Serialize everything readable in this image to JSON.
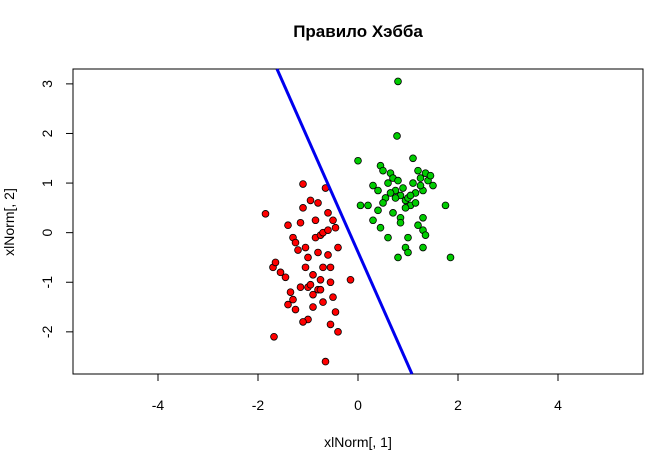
{
  "chart_data": {
    "type": "scatter",
    "title": "Правило Хэбба",
    "xlabel": "xlNorm[, 1]",
    "ylabel": "xlNorm[, 2]",
    "xlim": [
      -5.7,
      5.7
    ],
    "ylim": [
      -2.85,
      3.3
    ],
    "x_ticks": [
      -4,
      -2,
      0,
      2,
      4
    ],
    "x_tick_labels": [
      "-4",
      "-2",
      "0",
      "2",
      "4"
    ],
    "y_ticks": [
      -2,
      -1,
      0,
      1,
      2,
      3
    ],
    "y_tick_labels": [
      "-2",
      "-1",
      "0",
      "1",
      "2",
      "3"
    ],
    "grid": false,
    "series": [
      {
        "color": "#ff0000",
        "points": [
          [
            -1.85,
            0.38
          ],
          [
            -1.7,
            -0.7
          ],
          [
            -1.65,
            -0.6
          ],
          [
            -1.55,
            -0.8
          ],
          [
            -1.68,
            -2.1
          ],
          [
            -1.45,
            -0.9
          ],
          [
            -1.4,
            -1.45
          ],
          [
            -1.3,
            -1.35
          ],
          [
            -1.25,
            -1.55
          ],
          [
            -1.4,
            0.15
          ],
          [
            -1.3,
            -0.1
          ],
          [
            -1.2,
            -0.35
          ],
          [
            -1.15,
            0.2
          ],
          [
            -1.1,
            0.5
          ],
          [
            -1.1,
            0.98
          ],
          [
            -1.05,
            -0.3
          ],
          [
            -1.05,
            -0.7
          ],
          [
            -1.0,
            -1.1
          ],
          [
            -1.0,
            -1.75
          ],
          [
            -0.95,
            0.65
          ],
          [
            -0.9,
            -0.85
          ],
          [
            -0.9,
            -1.25
          ],
          [
            -0.85,
            0.25
          ],
          [
            -0.85,
            -0.1
          ],
          [
            -0.8,
            -1.15
          ],
          [
            -0.8,
            -0.4
          ],
          [
            -0.75,
            -0.05
          ],
          [
            -0.75,
            -0.95
          ],
          [
            -0.7,
            0.0
          ],
          [
            -0.7,
            -1.4
          ],
          [
            -0.65,
            0.9
          ],
          [
            -0.6,
            0.4
          ],
          [
            -0.6,
            -0.45
          ],
          [
            -0.55,
            -1.0
          ],
          [
            -0.55,
            -1.85
          ],
          [
            -0.5,
            -1.3
          ],
          [
            -0.45,
            0.1
          ],
          [
            -0.45,
            -1.6
          ],
          [
            -0.4,
            -0.3
          ],
          [
            -0.4,
            -2.0
          ],
          [
            -0.65,
            -2.6
          ],
          [
            -0.95,
            -1.05
          ],
          [
            -1.15,
            -1.1
          ],
          [
            -1.25,
            -0.2
          ],
          [
            -0.8,
            0.6
          ],
          [
            -0.7,
            -0.7
          ],
          [
            -1.0,
            -0.5
          ],
          [
            -0.6,
            0.05
          ],
          [
            -1.35,
            -1.2
          ],
          [
            -0.9,
            -1.5
          ],
          [
            -0.15,
            -0.95
          ],
          [
            -0.75,
            -1.15
          ],
          [
            -0.55,
            -0.7
          ],
          [
            -1.1,
            -1.8
          ],
          [
            -0.5,
            0.25
          ]
        ]
      },
      {
        "color": "#00cc00",
        "points": [
          [
            0.8,
            3.05
          ],
          [
            0.78,
            1.95
          ],
          [
            0.0,
            1.45
          ],
          [
            0.45,
            1.35
          ],
          [
            1.1,
            1.5
          ],
          [
            0.5,
            1.25
          ],
          [
            0.3,
            0.95
          ],
          [
            0.6,
            1.0
          ],
          [
            0.65,
            1.2
          ],
          [
            0.7,
            1.1
          ],
          [
            0.75,
            0.85
          ],
          [
            0.8,
            1.05
          ],
          [
            0.85,
            0.75
          ],
          [
            0.9,
            0.9
          ],
          [
            0.95,
            0.65
          ],
          [
            1.0,
            0.7
          ],
          [
            1.05,
            0.55
          ],
          [
            1.1,
            1.0
          ],
          [
            1.15,
            0.8
          ],
          [
            1.2,
            1.25
          ],
          [
            1.25,
            1.1
          ],
          [
            1.3,
            0.85
          ],
          [
            1.35,
            1.2
          ],
          [
            1.4,
            1.05
          ],
          [
            1.45,
            1.15
          ],
          [
            1.5,
            0.95
          ],
          [
            0.55,
            0.7
          ],
          [
            0.5,
            0.6
          ],
          [
            0.4,
            0.45
          ],
          [
            0.2,
            0.55
          ],
          [
            0.05,
            0.55
          ],
          [
            0.3,
            0.25
          ],
          [
            0.45,
            0.1
          ],
          [
            0.7,
            0.4
          ],
          [
            0.85,
            0.3
          ],
          [
            0.95,
            0.5
          ],
          [
            1.0,
            -0.1
          ],
          [
            1.2,
            0.15
          ],
          [
            1.3,
            0.05
          ],
          [
            1.35,
            -0.05
          ],
          [
            1.3,
            -0.3
          ],
          [
            0.95,
            -0.3
          ],
          [
            1.0,
            -0.4
          ],
          [
            0.8,
            -0.5
          ],
          [
            0.6,
            -0.1
          ],
          [
            1.75,
            0.55
          ],
          [
            1.85,
            -0.5
          ],
          [
            0.4,
            0.85
          ],
          [
            0.75,
            0.7
          ],
          [
            1.15,
            0.6
          ],
          [
            0.85,
            0.2
          ],
          [
            1.25,
            0.95
          ],
          [
            0.65,
            0.8
          ],
          [
            1.05,
            0.75
          ],
          [
            1.3,
            0.3
          ]
        ]
      }
    ],
    "line": {
      "color": "#0000ee",
      "x": [
        -1.62,
        1.08
      ],
      "y": [
        3.3,
        -2.85
      ]
    }
  }
}
